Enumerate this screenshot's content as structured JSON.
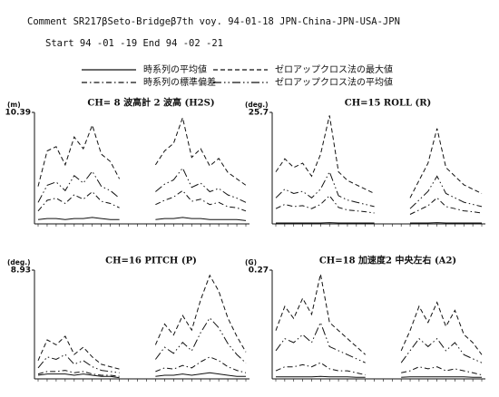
{
  "header": {
    "comment": "Comment  SR217βSeto-Bridgeβ7th voy.  94-01-18  JPN-China-JPN-USA-JPN",
    "period": "Start   94 -01 -19      End  94 -02 -21"
  },
  "chart_data": [
    {
      "type": "line",
      "title": "CH= 8 波高計 2 波高 (H2S)",
      "ylabel": "(m)",
      "ylim": [
        0,
        10.39
      ],
      "yticks": [
        10.39
      ],
      "categories": [
        null,
        null,
        null,
        null,
        null,
        null,
        null,
        null,
        null,
        null,
        null,
        null,
        null,
        null,
        null,
        null,
        null,
        null,
        null,
        null,
        null,
        null,
        null,
        null
      ],
      "series": [
        {
          "name": "時系列の平均値",
          "color": "#111111",
          "dash": "solid",
          "values": [
            0.4,
            0.5,
            0.5,
            0.4,
            0.5,
            0.5,
            0.6,
            0.5,
            0.4,
            0.4,
            null,
            null,
            null,
            0.4,
            0.5,
            0.5,
            0.6,
            0.5,
            0.5,
            0.4,
            0.4,
            0.4,
            0.4,
            0.3
          ]
        },
        {
          "name": "時系列の標準偏差",
          "color": "#111111",
          "dash": "dashdot",
          "values": [
            1.2,
            2.2,
            2.4,
            1.9,
            2.7,
            2.3,
            3.0,
            2.1,
            1.9,
            1.5,
            null,
            null,
            null,
            1.8,
            2.2,
            2.5,
            3.1,
            2.1,
            2.3,
            1.8,
            2.0,
            1.6,
            1.5,
            1.2
          ]
        },
        {
          "name": "ゼロアップクロス法の最大値",
          "color": "#111111",
          "dash": "dashed",
          "values": [
            3.5,
            6.8,
            7.2,
            5.5,
            8.1,
            7.0,
            9.2,
            6.5,
            5.8,
            4.2,
            null,
            null,
            null,
            5.5,
            6.8,
            7.5,
            9.9,
            6.2,
            7.0,
            5.4,
            6.1,
            4.8,
            4.2,
            3.6
          ]
        },
        {
          "name": "ゼロアップクロス法の平均値",
          "color": "#111111",
          "dash": "longdashdot",
          "values": [
            2.0,
            3.6,
            3.9,
            3.1,
            4.5,
            3.8,
            4.9,
            3.5,
            3.1,
            2.4,
            null,
            null,
            null,
            3.0,
            3.7,
            4.1,
            5.2,
            3.4,
            3.8,
            3.0,
            3.3,
            2.7,
            2.4,
            2.0
          ]
        }
      ]
    },
    {
      "type": "line",
      "title": "CH=15 ROLL (R)",
      "ylabel": "(deg.)",
      "ylim": [
        0,
        25.7
      ],
      "yticks": [
        25.7
      ],
      "categories": [
        null,
        null,
        null,
        null,
        null,
        null,
        null,
        null,
        null,
        null,
        null,
        null,
        null,
        null,
        null,
        null,
        null,
        null,
        null,
        null,
        null,
        null,
        null,
        null
      ],
      "series": [
        {
          "name": "時系列の平均値",
          "color": "#111111",
          "dash": "solid",
          "values": [
            0.2,
            0.2,
            0.2,
            0.2,
            0.2,
            0.2,
            0.3,
            0.2,
            0.2,
            0.2,
            0.2,
            0.2,
            null,
            null,
            null,
            0.2,
            0.2,
            0.2,
            0.3,
            0.2,
            0.2,
            0.2,
            0.2,
            0.2
          ]
        },
        {
          "name": "時系列の標準偏差",
          "color": "#111111",
          "dash": "dashdot",
          "values": [
            3.5,
            4.5,
            4,
            4.2,
            3.5,
            4.5,
            6.5,
            3.8,
            3.2,
            3,
            2.8,
            2.5,
            null,
            null,
            null,
            2.2,
            3.2,
            4.2,
            6,
            4,
            3.5,
            3,
            2.8,
            2.5
          ]
        },
        {
          "name": "ゼロアップクロス法の最大値",
          "color": "#111111",
          "dash": "dashed",
          "values": [
            12,
            15,
            13,
            14,
            11,
            16,
            25,
            12,
            10,
            9,
            8,
            7,
            null,
            null,
            null,
            6,
            10,
            14,
            22,
            13,
            11,
            9,
            8,
            7
          ]
        },
        {
          "name": "ゼロアップクロス法の平均値",
          "color": "#111111",
          "dash": "longdashdot",
          "values": [
            6,
            8,
            7,
            7.5,
            6,
            8,
            12,
            6.5,
            5.5,
            5,
            4.5,
            4,
            null,
            null,
            null,
            3.5,
            5.5,
            7.5,
            11,
            7,
            6,
            5,
            4.5,
            4
          ]
        }
      ]
    },
    {
      "type": "line",
      "title": "CH=16 PITCH (P)",
      "ylabel": "(deg.)",
      "ylim": [
        0,
        8.93
      ],
      "yticks": [
        8.93
      ],
      "categories": [
        null,
        null,
        null,
        null,
        null,
        null,
        null,
        null,
        null,
        null,
        null,
        null,
        null,
        null,
        null,
        null,
        null,
        null,
        null,
        null,
        null,
        null,
        null,
        null
      ],
      "series": [
        {
          "name": "時系列の平均値",
          "color": "#111111",
          "dash": "solid",
          "values": [
            0.3,
            0.4,
            0.4,
            0.4,
            0.3,
            0.4,
            0.3,
            0.2,
            0.2,
            0.1,
            null,
            null,
            null,
            0.2,
            0.3,
            0.3,
            0.4,
            0.3,
            0.4,
            0.5,
            0.4,
            0.3,
            0.2,
            0.2
          ]
        },
        {
          "name": "時系列の標準偏差",
          "color": "#111111",
          "dash": "dashdot",
          "values": [
            0.4,
            0.6,
            0.6,
            0.7,
            0.5,
            0.6,
            0.4,
            0.3,
            0.3,
            0.2,
            null,
            null,
            null,
            0.6,
            0.9,
            0.8,
            1.1,
            0.9,
            1.4,
            1.8,
            1.5,
            1.0,
            0.7,
            0.5
          ]
        },
        {
          "name": "ゼロアップクロス法の最大値",
          "color": "#111111",
          "dash": "dashed",
          "values": [
            1.5,
            3.2,
            2.8,
            3.5,
            2.0,
            2.6,
            1.8,
            1.2,
            1.0,
            0.8,
            null,
            null,
            null,
            2.8,
            4.5,
            3.6,
            5.2,
            4.0,
            6.5,
            8.5,
            7.2,
            5.0,
            3.5,
            2.2
          ]
        },
        {
          "name": "ゼロアップクロス法の平均値",
          "color": "#111111",
          "dash": "longdashdot",
          "values": [
            0.9,
            1.8,
            1.6,
            2.0,
            1.2,
            1.5,
            1.0,
            0.7,
            0.6,
            0.5,
            null,
            null,
            null,
            1.6,
            2.6,
            2.1,
            3.0,
            2.3,
            3.8,
            5.0,
            4.2,
            2.9,
            2.0,
            1.3
          ]
        }
      ]
    },
    {
      "type": "line",
      "title": "CH=18 加速度2 中央左右 (A2)",
      "ylabel": "(G)",
      "ylim": [
        0,
        0.27
      ],
      "yticks": [
        0.27
      ],
      "categories": [
        null,
        null,
        null,
        null,
        null,
        null,
        null,
        null,
        null,
        null,
        null,
        null,
        null,
        null,
        null,
        null,
        null,
        null,
        null,
        null,
        null,
        null,
        null,
        null
      ],
      "series": [
        {
          "name": "時系列の平均値",
          "color": "#111111",
          "dash": "solid",
          "values": [
            0.005,
            0.005,
            0.005,
            0.005,
            0.005,
            0.006,
            0.005,
            0.005,
            0.005,
            0.004,
            0.004,
            null,
            null,
            null,
            0.004,
            0.005,
            0.005,
            0.005,
            0.005,
            0.005,
            0.005,
            0.005,
            0.004,
            0.004
          ]
        },
        {
          "name": "時系列の標準偏差",
          "color": "#111111",
          "dash": "dashdot",
          "values": [
            0.02,
            0.03,
            0.03,
            0.035,
            0.03,
            0.04,
            0.025,
            0.02,
            0.02,
            0.015,
            0.01,
            null,
            null,
            null,
            0.015,
            0.02,
            0.03,
            0.025,
            0.03,
            0.02,
            0.025,
            0.02,
            0.015,
            0.01
          ]
        },
        {
          "name": "ゼロアップクロス法の最大値",
          "color": "#111111",
          "dash": "dashed",
          "values": [
            0.12,
            0.18,
            0.15,
            0.2,
            0.16,
            0.26,
            0.14,
            0.12,
            0.1,
            0.08,
            0.06,
            null,
            null,
            null,
            0.07,
            0.12,
            0.18,
            0.14,
            0.19,
            0.13,
            0.17,
            0.11,
            0.09,
            0.06
          ]
        },
        {
          "name": "ゼロアップクロス法の平均値",
          "color": "#111111",
          "dash": "longdashdot",
          "values": [
            0.07,
            0.1,
            0.09,
            0.11,
            0.09,
            0.14,
            0.08,
            0.07,
            0.06,
            0.05,
            0.04,
            null,
            null,
            null,
            0.04,
            0.07,
            0.1,
            0.08,
            0.1,
            0.07,
            0.09,
            0.06,
            0.05,
            0.04
          ]
        }
      ]
    }
  ]
}
